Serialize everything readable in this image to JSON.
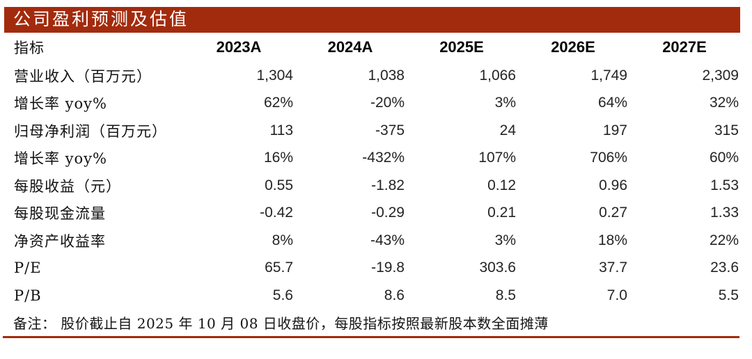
{
  "title": "公司盈利预测及估值",
  "colors": {
    "accent": "#A32B0D"
  },
  "table": {
    "header": [
      "指标",
      "2023A",
      "2024A",
      "2025E",
      "2026E",
      "2027E"
    ],
    "rows": [
      {
        "label": "营业收入（百万元）",
        "values": [
          "1,304",
          "1,038",
          "1,066",
          "1,749",
          "2,309"
        ]
      },
      {
        "label": "增长率 yoy%",
        "values": [
          "62%",
          "-20%",
          "3%",
          "64%",
          "32%"
        ]
      },
      {
        "label": "归母净利润（百万元）",
        "values": [
          "113",
          "-375",
          "24",
          "197",
          "315"
        ]
      },
      {
        "label": "增长率 yoy%",
        "values": [
          "16%",
          "-432%",
          "107%",
          "706%",
          "60%"
        ]
      },
      {
        "label": "每股收益（元）",
        "values": [
          "0.55",
          "-1.82",
          "0.12",
          "0.96",
          "1.53"
        ]
      },
      {
        "label": "每股现金流量",
        "values": [
          "-0.42",
          "-0.29",
          "0.21",
          "0.27",
          "1.33"
        ]
      },
      {
        "label": "净资产收益率",
        "values": [
          "8%",
          "-43%",
          "3%",
          "18%",
          "22%"
        ]
      },
      {
        "label": "P/E",
        "values": [
          "65.7",
          "-19.8",
          "303.6",
          "37.7",
          "23.6"
        ]
      },
      {
        "label": "P/B",
        "values": [
          "5.6",
          "8.6",
          "8.5",
          "7.0",
          "5.5"
        ]
      }
    ]
  },
  "note": "备注：  股价截止自 2025 年 10 月 08 日收盘价，每股指标按照最新股本数全面摊薄"
}
